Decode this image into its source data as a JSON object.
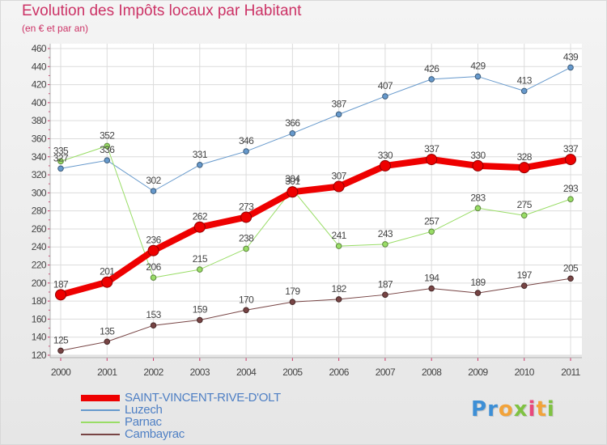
{
  "title": "Evolution des Impôts locaux par Habitant",
  "subtitle": "(en € et par an)",
  "logo": {
    "text": "Proxiti",
    "letters": [
      {
        "ch": "P",
        "color": "#3d8fd6"
      },
      {
        "ch": "r",
        "color": "#3d8fd6"
      },
      {
        "ch": "o",
        "color": "#f2a33a"
      },
      {
        "ch": "x",
        "color": "#7fc242"
      },
      {
        "ch": "i",
        "color": "#e8487c"
      },
      {
        "ch": "t",
        "color": "#f2a33a"
      },
      {
        "ch": "i",
        "color": "#7fc242"
      }
    ]
  },
  "chart_data": {
    "type": "line",
    "title": "Evolution des Impôts locaux par Habitant",
    "subtitle": "(en € et par an)",
    "x": [
      "2000",
      "2001",
      "2002",
      "2003",
      "2004",
      "2005",
      "2006",
      "2007",
      "2008",
      "2009",
      "2010",
      "2011"
    ],
    "ylim": [
      120,
      460
    ],
    "yticks": [
      120,
      140,
      160,
      180,
      200,
      220,
      240,
      260,
      280,
      300,
      320,
      340,
      360,
      380,
      400,
      420,
      440,
      460
    ],
    "grid": true,
    "legend_position": "bottom-left",
    "series": [
      {
        "name": "SAINT-VINCENT-RIVE-D'OLT",
        "color": "#ee0000",
        "width": 8,
        "values": [
          187,
          201,
          236,
          262,
          273,
          301,
          307,
          330,
          337,
          330,
          328,
          337
        ]
      },
      {
        "name": "Luzech",
        "color": "#6699cc",
        "width": 1,
        "values": [
          327,
          336,
          302,
          331,
          346,
          366,
          387,
          407,
          426,
          429,
          413,
          439
        ]
      },
      {
        "name": "Parnac",
        "color": "#99dd66",
        "width": 1,
        "values": [
          335,
          352,
          206,
          215,
          238,
          304,
          241,
          243,
          257,
          283,
          275,
          293
        ]
      },
      {
        "name": "Cambayrac",
        "color": "#774444",
        "width": 1,
        "values": [
          125,
          135,
          153,
          159,
          170,
          179,
          182,
          187,
          194,
          189,
          197,
          205
        ]
      }
    ]
  }
}
